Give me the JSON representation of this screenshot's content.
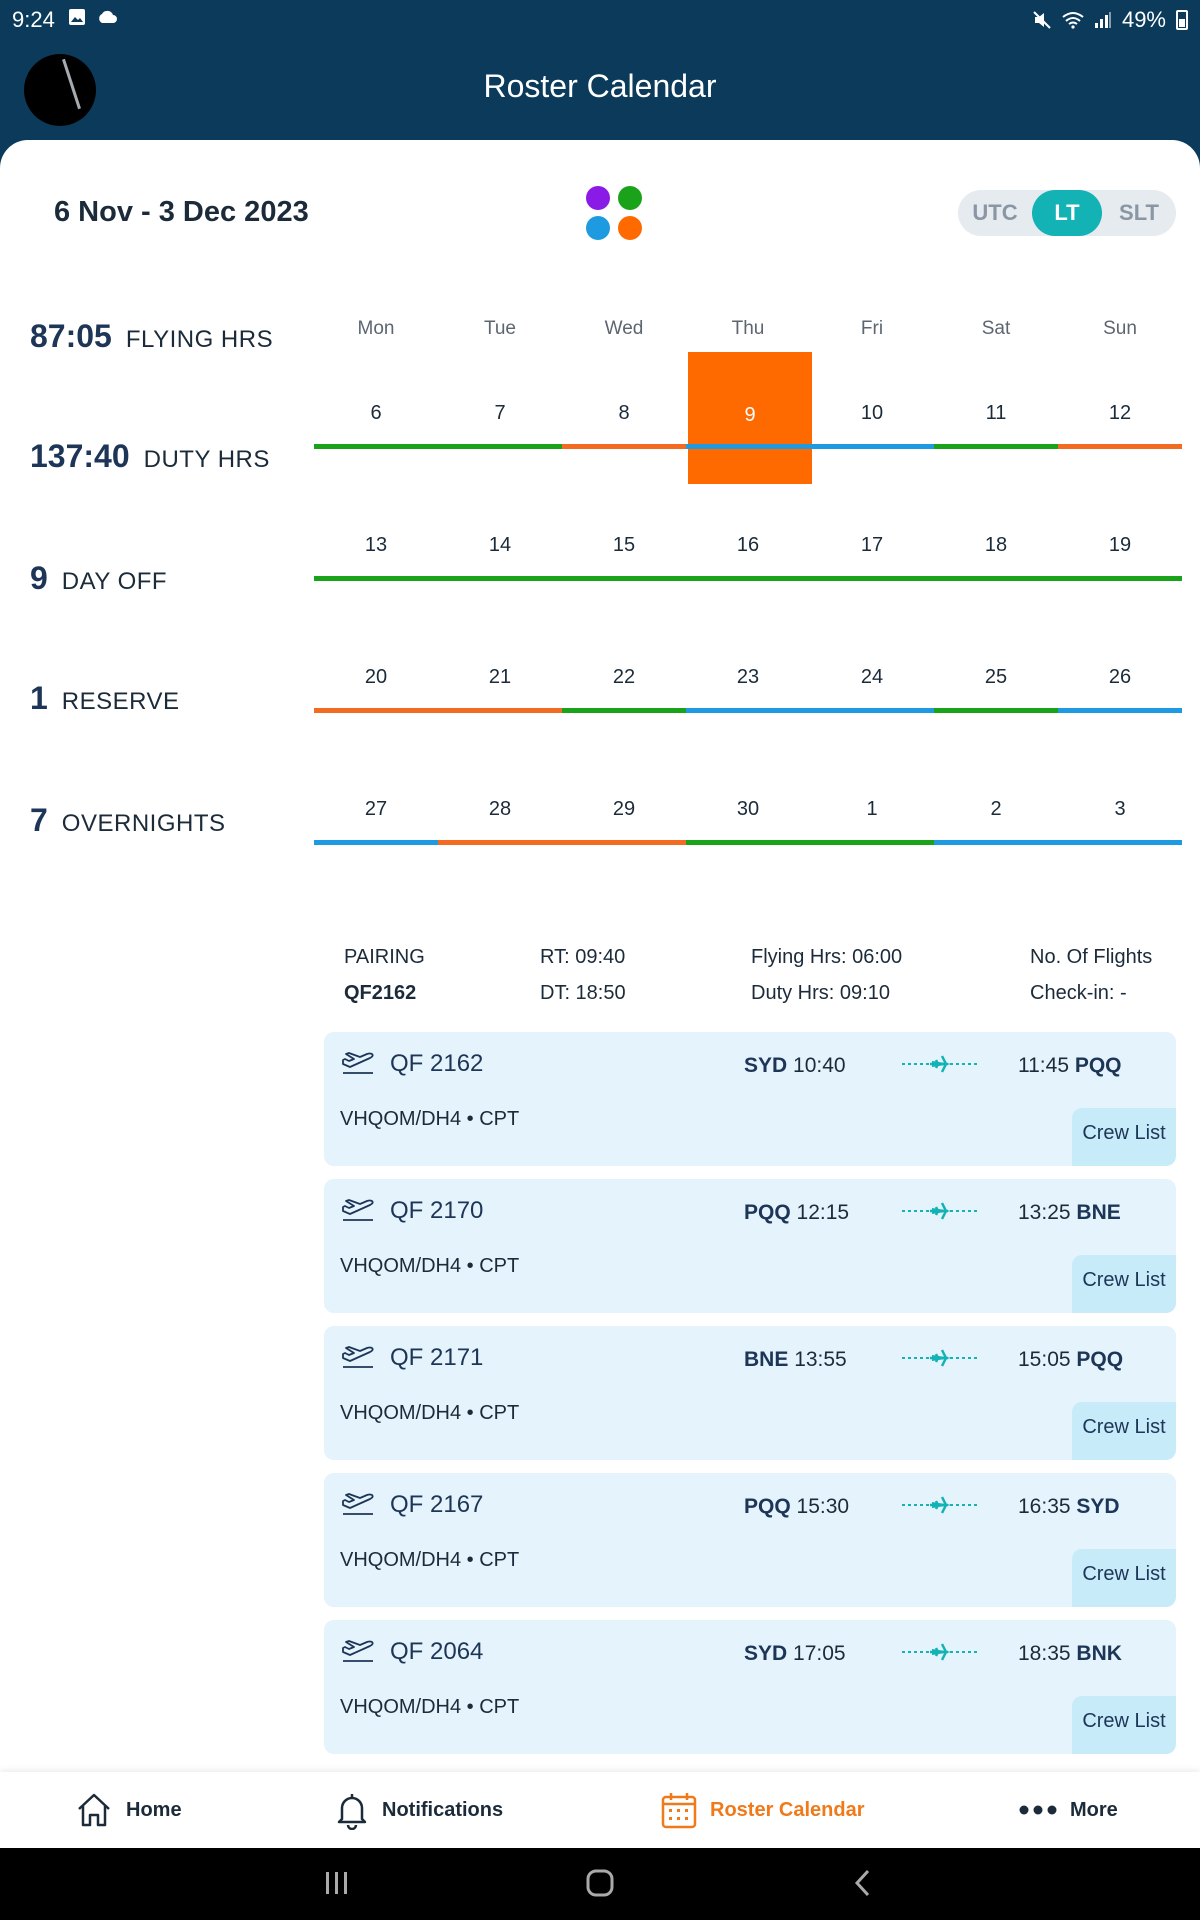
{
  "status_bar": {
    "time": "9:24",
    "left_icons": [
      "image-icon",
      "cloud-icon"
    ],
    "right_icons": [
      "mute-icon",
      "wifi-icon",
      "signal-icon",
      "battery-icon"
    ],
    "battery": "49%"
  },
  "header": {
    "title": "Roster Calendar"
  },
  "toolbar": {
    "date_range": "6 Nov - 3 Dec 2023",
    "legend_colors": [
      "#8a1ae6",
      "#1aa31a",
      "#1e9be0",
      "#ff6a00"
    ],
    "tz_options": [
      "UTC",
      "LT",
      "SLT"
    ],
    "tz_selected": "LT"
  },
  "stats": [
    {
      "value": "87:05",
      "label": "FLYING HRS"
    },
    {
      "value": "137:40",
      "label": "DUTY HRS"
    },
    {
      "value": "9",
      "label": "DAY OFF"
    },
    {
      "value": "1",
      "label": "RESERVE"
    },
    {
      "value": "7",
      "label": "OVERNIGHTS"
    }
  ],
  "calendar": {
    "weekdays": [
      "Mon",
      "Tue",
      "Wed",
      "Thu",
      "Fri",
      "Sat",
      "Sun"
    ],
    "weeks": [
      [
        "6",
        "7",
        "8",
        "9",
        "10",
        "11",
        "12"
      ],
      [
        "13",
        "14",
        "15",
        "16",
        "17",
        "18",
        "19"
      ],
      [
        "20",
        "21",
        "22",
        "23",
        "24",
        "25",
        "26"
      ],
      [
        "27",
        "28",
        "29",
        "30",
        "1",
        "2",
        "3"
      ]
    ],
    "selected_day": "9",
    "day_status_colors": [
      [
        "#1aa31a",
        "#1aa31a",
        "#f26b21",
        "#1e9be0",
        "#1e9be0",
        "#1aa31a",
        "#f26b21"
      ],
      [
        "#1aa31a",
        "#1aa31a",
        "#1aa31a",
        "#1aa31a",
        "#1aa31a",
        "#1aa31a",
        "#1aa31a"
      ],
      [
        "#f26b21",
        "#f26b21",
        "#1aa31a",
        "#1e9be0",
        "#1e9be0",
        "#1aa31a",
        "#1e9be0"
      ],
      [
        "#1e9be0",
        "#f26b21",
        "#f26b21",
        "#1aa31a",
        "#1aa31a",
        "#1e9be0",
        "#1e9be0"
      ]
    ],
    "selected_color": "#ff6a00"
  },
  "pairing": {
    "label": "PAIRING",
    "code": "QF2162",
    "rt": "RT:  09:40",
    "dt": "DT:  18:50",
    "flying_hrs": "Flying Hrs:  06:00",
    "duty_hrs": "Duty Hrs:  09:10",
    "no_of_flights": "No. Of Flights",
    "check_in": "Check-in:  -"
  },
  "flights": [
    {
      "number": "QF 2162",
      "from": "SYD",
      "dep_time": "10:40",
      "arr_time": "11:45",
      "to": "PQQ",
      "aircraft": "VHQOM/DH4 • CPT",
      "crew_button": "Crew List"
    },
    {
      "number": "QF 2170",
      "from": "PQQ",
      "dep_time": "12:15",
      "arr_time": "13:25",
      "to": "BNE",
      "aircraft": "VHQOM/DH4 • CPT",
      "crew_button": "Crew List"
    },
    {
      "number": "QF 2171",
      "from": "BNE",
      "dep_time": "13:55",
      "arr_time": "15:05",
      "to": "PQQ",
      "aircraft": "VHQOM/DH4 • CPT",
      "crew_button": "Crew List"
    },
    {
      "number": "QF 2167",
      "from": "PQQ",
      "dep_time": "15:30",
      "arr_time": "16:35",
      "to": "SYD",
      "aircraft": "VHQOM/DH4 • CPT",
      "crew_button": "Crew List"
    },
    {
      "number": "QF 2064",
      "from": "SYD",
      "dep_time": "17:05",
      "arr_time": "18:35",
      "to": "BNK",
      "aircraft": "VHQOM/DH4 • CPT",
      "crew_button": "Crew List"
    }
  ],
  "bottom_nav": [
    {
      "label": "Home",
      "icon": "home-icon"
    },
    {
      "label": "Notifications",
      "icon": "bell-icon"
    },
    {
      "label": "Roster Calendar",
      "icon": "calendar-icon",
      "active": true
    },
    {
      "label": "More",
      "icon": "more-icon"
    }
  ],
  "system_nav": [
    "recent-apps-icon",
    "home-circle-icon",
    "back-icon"
  ]
}
